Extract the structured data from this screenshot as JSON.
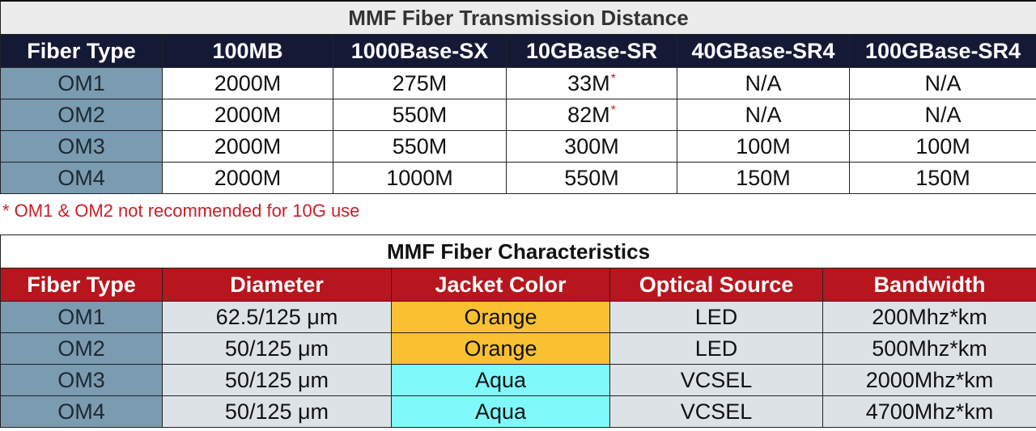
{
  "distance": {
    "title": "MMF Fiber Transmission Distance",
    "headers": [
      "Fiber Type",
      "100MB",
      "1000Base-SX",
      "10GBase-SR",
      "40GBase-SR4",
      "100GBase-SR4"
    ],
    "rows": [
      {
        "type": "OM1",
        "c100mb": "2000M",
        "c1000sx": "275M",
        "c10gsr": "33M",
        "c10gsr_mark": "*",
        "c40g": "N/A",
        "c100g": "N/A"
      },
      {
        "type": "OM2",
        "c100mb": "2000M",
        "c1000sx": "550M",
        "c10gsr": "82M",
        "c10gsr_mark": "*",
        "c40g": "N/A",
        "c100g": "N/A"
      },
      {
        "type": "OM3",
        "c100mb": "2000M",
        "c1000sx": "550M",
        "c10gsr": "300M",
        "c10gsr_mark": "",
        "c40g": "100M",
        "c100g": "100M"
      },
      {
        "type": "OM4",
        "c100mb": "2000M",
        "c1000sx": "1000M",
        "c10gsr": "550M",
        "c10gsr_mark": "",
        "c40g": "150M",
        "c100g": "150M"
      }
    ],
    "footnote": "* OM1 & OM2 not recommended for 10G use"
  },
  "characteristics": {
    "title": "MMF Fiber Characteristics",
    "headers": [
      "Fiber Type",
      "Diameter",
      "Jacket Color",
      "Optical Source",
      "Bandwidth"
    ],
    "rows": [
      {
        "type": "OM1",
        "diameter": "62.5/125 μm",
        "jacket": "Orange",
        "source": "LED",
        "bandwidth": "200Mhz*km"
      },
      {
        "type": "OM2",
        "diameter": "50/125 μm",
        "jacket": "Orange",
        "source": "LED",
        "bandwidth": "500Mhz*km"
      },
      {
        "type": "OM3",
        "diameter": "50/125 μm",
        "jacket": "Aqua",
        "source": "VCSEL",
        "bandwidth": "2000Mhz*km"
      },
      {
        "type": "OM4",
        "diameter": "50/125 μm",
        "jacket": "Aqua",
        "source": "VCSEL",
        "bandwidth": "4700Mhz*km"
      }
    ]
  },
  "colors": {
    "distance_header_bg": "#141a36",
    "characteristics_header_bg": "#b8161e",
    "fiber_type_cell_bg": "#7b9bb0",
    "jacket_orange": "#f9c132",
    "jacket_aqua": "#7ff9fa",
    "footnote_red": "#c8202a"
  }
}
